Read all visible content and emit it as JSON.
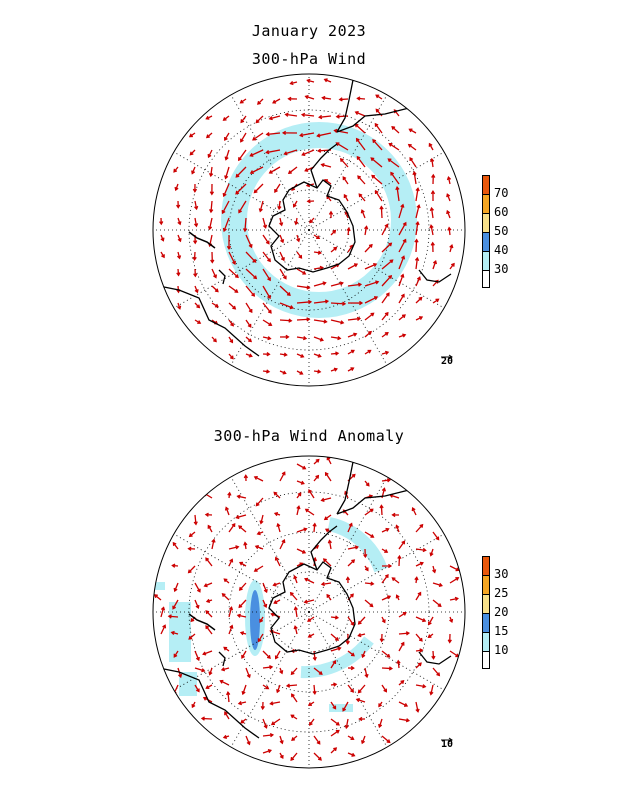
{
  "figure": {
    "title": "January 2023",
    "panel_top_title": "300-hPa Wind",
    "panel_bottom_title": "300-hPa Wind Anomaly"
  },
  "panel_top": {
    "colorbar": {
      "labels": [
        "70",
        "60",
        "50",
        "40",
        "30"
      ],
      "colors": [
        "#e8580c",
        "#f5a623",
        "#f7e08a",
        "#4a8fe0",
        "#b5eef5",
        "#ffffff"
      ]
    },
    "reference_vector": "20",
    "shading_color": "#b5eef5"
  },
  "panel_bottom": {
    "colorbar": {
      "labels": [
        "30",
        "25",
        "20",
        "15",
        "10"
      ],
      "colors": [
        "#e8580c",
        "#f5a623",
        "#f7e08a",
        "#4a8fe0",
        "#b5eef5",
        "#ffffff"
      ]
    },
    "reference_vector": "10",
    "shading_light": "#b5eef5",
    "shading_dark": "#4a8fe0"
  },
  "arrow_color": "#cc0000"
}
